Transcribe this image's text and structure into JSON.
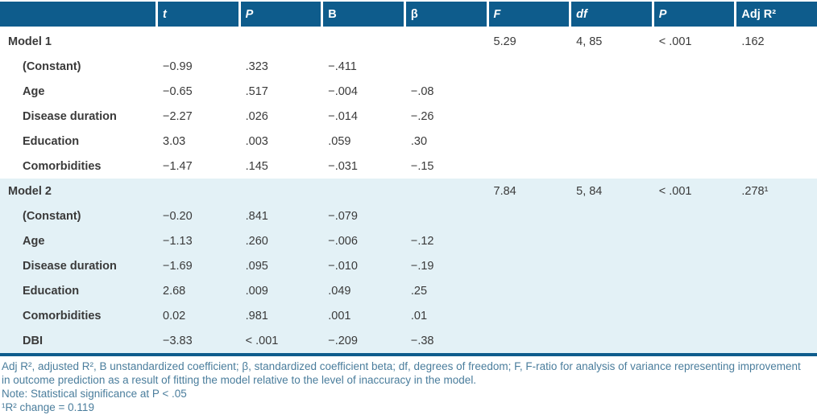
{
  "colors": {
    "header_blue": "#0e5c8c",
    "model2_band_blue": "#e3f1f6",
    "body_text": "#3a3a3a",
    "footnote_text": "#4a7d9c"
  },
  "table": {
    "columns": [
      {
        "key": "rowlabel",
        "label": "",
        "italic": false
      },
      {
        "key": "t",
        "label": "t",
        "italic": true
      },
      {
        "key": "p",
        "label": "P",
        "italic": true
      },
      {
        "key": "b",
        "label": "B",
        "italic": false
      },
      {
        "key": "beta",
        "label": "β",
        "italic": false
      },
      {
        "key": "f",
        "label": "F",
        "italic": true
      },
      {
        "key": "df",
        "label": "df",
        "italic": true
      },
      {
        "key": "p-model",
        "label": "P",
        "italic": true
      },
      {
        "key": "adj-r2",
        "label": "Adj R²",
        "italic": false
      }
    ],
    "rows": [
      {
        "label": "Model 1",
        "indent": false,
        "banded": false,
        "cells": [
          "",
          "",
          "",
          "",
          "5.29",
          "4, 85",
          "< .001",
          ".162"
        ]
      },
      {
        "label": "(Constant)",
        "indent": true,
        "banded": false,
        "cells": [
          "−0.99",
          ".323",
          "−.411",
          "",
          "",
          "",
          "",
          ""
        ]
      },
      {
        "label": "Age",
        "indent": true,
        "banded": false,
        "cells": [
          "−0.65",
          ".517",
          "−.004",
          "−.08",
          "",
          "",
          "",
          ""
        ]
      },
      {
        "label": "Disease duration",
        "indent": true,
        "banded": false,
        "cells": [
          "−2.27",
          ".026",
          "−.014",
          "−.26",
          "",
          "",
          "",
          ""
        ]
      },
      {
        "label": "Education",
        "indent": true,
        "banded": false,
        "cells": [
          "3.03",
          ".003",
          ".059",
          ".30",
          "",
          "",
          "",
          ""
        ]
      },
      {
        "label": "Comorbidities",
        "indent": true,
        "banded": false,
        "cells": [
          "−1.47",
          ".145",
          "−.031",
          "−.15",
          "",
          "",
          "",
          ""
        ]
      },
      {
        "label": "Model 2",
        "indent": false,
        "banded": true,
        "cells": [
          "",
          "",
          "",
          "",
          "7.84",
          "5, 84",
          "< .001",
          ".278¹"
        ]
      },
      {
        "label": "(Constant)",
        "indent": true,
        "banded": true,
        "cells": [
          "−0.20",
          ".841",
          "−.079",
          "",
          "",
          "",
          "",
          ""
        ]
      },
      {
        "label": "Age",
        "indent": true,
        "banded": true,
        "cells": [
          "−1.13",
          ".260",
          "−.006",
          "−.12",
          "",
          "",
          "",
          ""
        ]
      },
      {
        "label": "Disease duration",
        "indent": true,
        "banded": true,
        "cells": [
          "−1.69",
          ".095",
          "−.010",
          "−.19",
          "",
          "",
          "",
          ""
        ]
      },
      {
        "label": "Education",
        "indent": true,
        "banded": true,
        "cells": [
          "2.68",
          ".009",
          ".049",
          ".25",
          "",
          "",
          "",
          ""
        ]
      },
      {
        "label": "Comorbidities",
        "indent": true,
        "banded": true,
        "cells": [
          "0.02",
          ".981",
          ".001",
          ".01",
          "",
          "",
          "",
          ""
        ]
      },
      {
        "label": "DBI",
        "indent": true,
        "banded": true,
        "cells": [
          "−3.83",
          "< .001",
          "−.209",
          "−.38",
          "",
          "",
          "",
          ""
        ]
      }
    ]
  },
  "footnotes": {
    "definitions": "Adj R², adjusted R², B unstandardized coefficient; β, standardized coefficient beta; df, degrees of freedom; F, F-ratio for analysis of variance representing improvement in outcome prediction as a result of fitting the model relative to the level of inaccuracy in the model.",
    "significance": "Note: Statistical significance at P < .05",
    "r2_change": "¹R² change = 0.119"
  }
}
